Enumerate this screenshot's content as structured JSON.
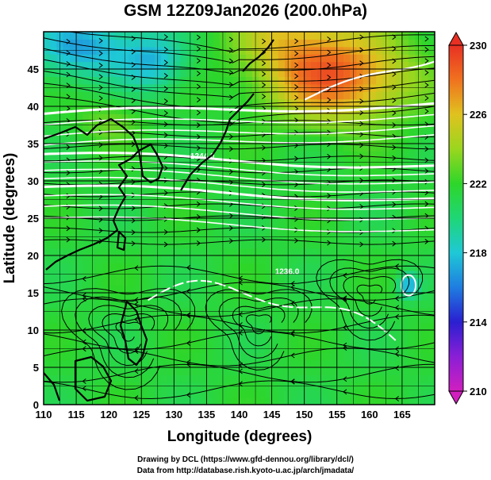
{
  "title": "GSM 12Z09Jan2026 (200.0hPa)",
  "xlabel": "Longitude (degrees)",
  "ylabel": "Latitude  (degrees)",
  "credit_line1": "Drawing by DCL (https://www.gfd-dennou.org/library/dcl/)",
  "credit_line2": "Data from http://database.rish.kyoto-u.ac.jp/arch/jmadata/",
  "colors": {
    "background": "#ffffff",
    "land_outline": "#000000",
    "streamline": "#000000",
    "contour": "#ffffff",
    "frame": "#000000"
  },
  "chart_data": {
    "type": "heatmap",
    "xlim": [
      110,
      170
    ],
    "ylim": [
      0,
      50
    ],
    "x_ticks": [
      "110",
      "115",
      "120",
      "125",
      "130",
      "135",
      "140",
      "145",
      "150",
      "155",
      "160",
      "165"
    ],
    "y_ticks": [
      "0",
      "5",
      "10",
      "15",
      "20",
      "25",
      "30",
      "35",
      "40",
      "45"
    ],
    "grid": true,
    "overlays": [
      "streamlines",
      "white contour lines",
      "coastlines"
    ],
    "colorbar": {
      "min": 210,
      "max": 230,
      "ticks": [
        "210",
        "214",
        "218",
        "222",
        "226",
        "230"
      ],
      "stops": [
        {
          "v": 210,
          "c": "#d11fbf"
        },
        {
          "v": 212,
          "c": "#8a1fd6"
        },
        {
          "v": 214,
          "c": "#2a1fd0"
        },
        {
          "v": 216,
          "c": "#1f7de0"
        },
        {
          "v": 218,
          "c": "#1fc8d6"
        },
        {
          "v": 220,
          "c": "#1fd676"
        },
        {
          "v": 222,
          "c": "#2ed62a"
        },
        {
          "v": 224,
          "c": "#9ad61f"
        },
        {
          "v": 226,
          "c": "#e0c21f"
        },
        {
          "v": 228,
          "c": "#f0721f"
        },
        {
          "v": 230,
          "c": "#e83024"
        }
      ]
    },
    "contour_labels": [
      "1236.0",
      "1244.0"
    ]
  }
}
